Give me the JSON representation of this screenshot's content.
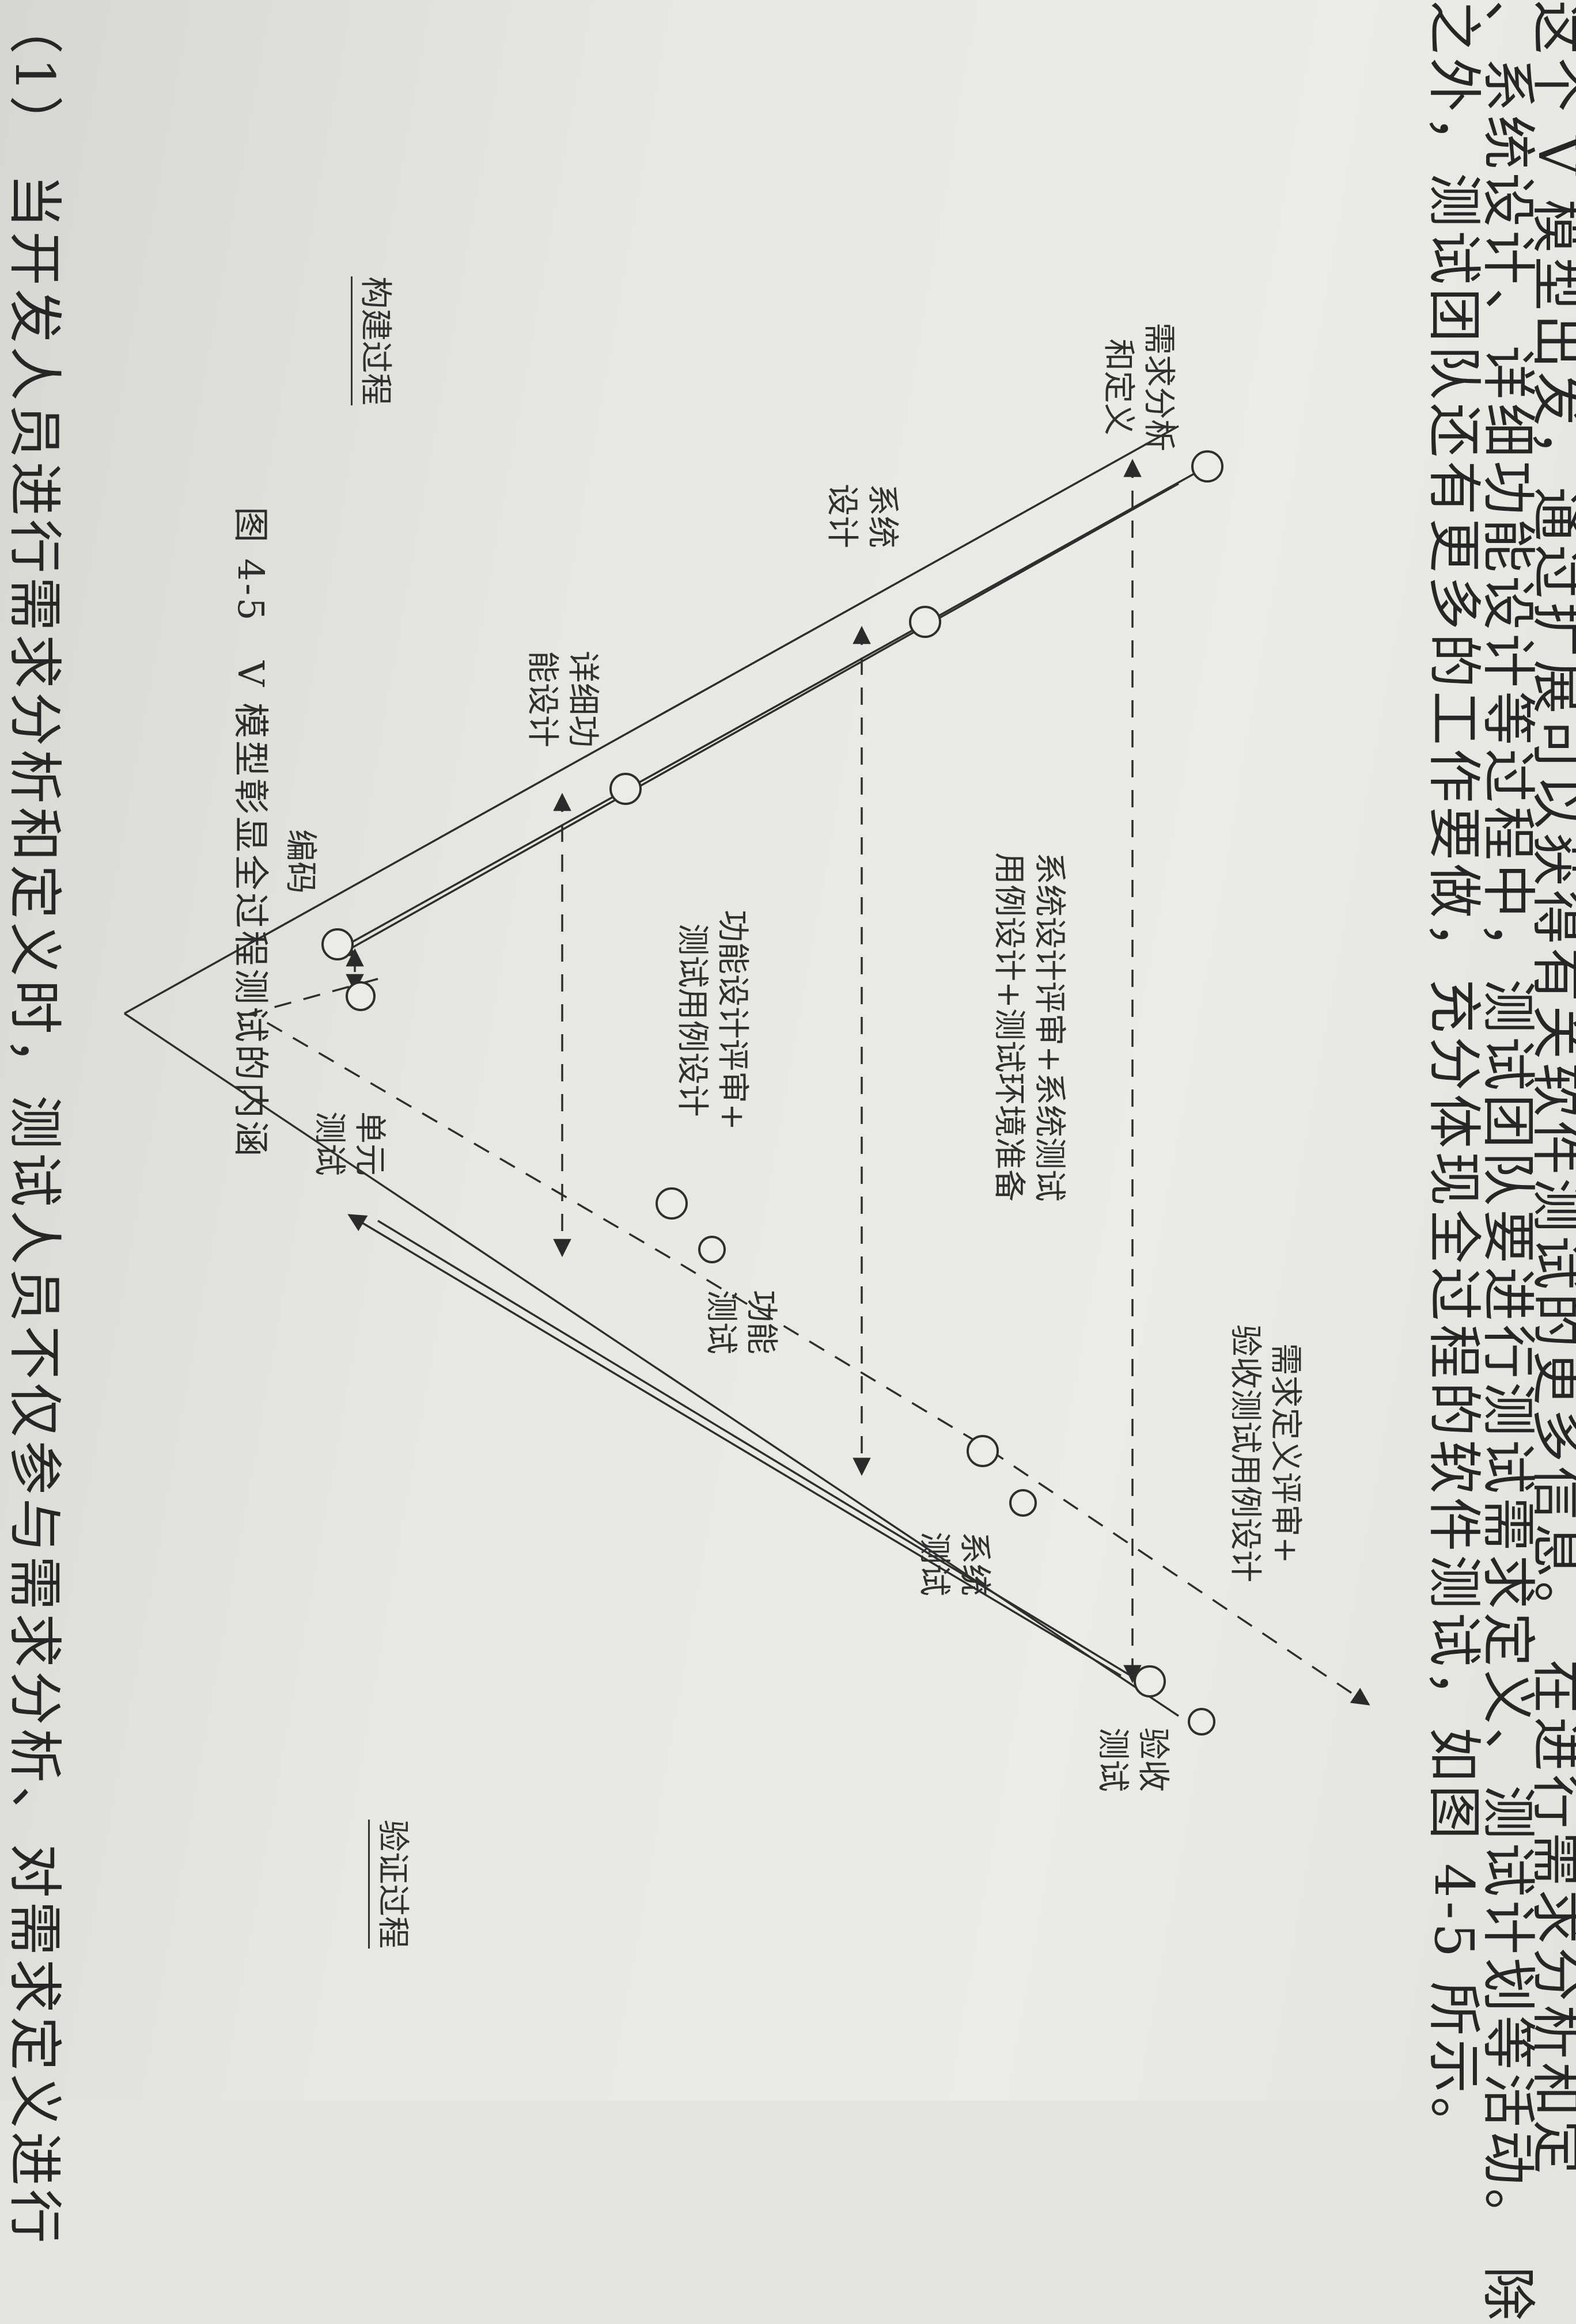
{
  "body_text": {
    "line1": "这个 V 模型出发，通过扩展可以获得有关软件测试的更多信息。 在进行需求分析和定",
    "line2": "、系统设计、详细功能设计等过程中，测试团队要进行测试需求定义、测试计划等活动。 除",
    "line3": "之外，测试团队还有更多的工作要做，充分体现全过程的软件测试，如图 4-5 所示。",
    "line4": "（1） 当开发人员进行需求分析和定义时，测试人员不仅参与需求分析、对需求定义进行"
  },
  "diagram": {
    "build_process": "构建过程",
    "verify_process": "验证过程",
    "dev_stages": {
      "requirements": "需求分析\n和定义",
      "system_design": "系统\n设计",
      "detailed_design": "详细功\n能设计",
      "coding": "编码"
    },
    "test_stages": {
      "unit_test": "单元\n测试",
      "function_test": "功能\n测试",
      "system_test": "系统\n测试",
      "acceptance_test": "验收\n测试"
    },
    "activities": {
      "acceptance_design": "需求定义评审+\n验收测试用例设计",
      "system_design_review": "系统设计评审+系统测试\n用例设计+测试环境准备",
      "function_design_review": "功能设计评审+\n测试用例设计"
    }
  },
  "caption": "图 4-5　V 模型彰显全过程测试的内涵"
}
